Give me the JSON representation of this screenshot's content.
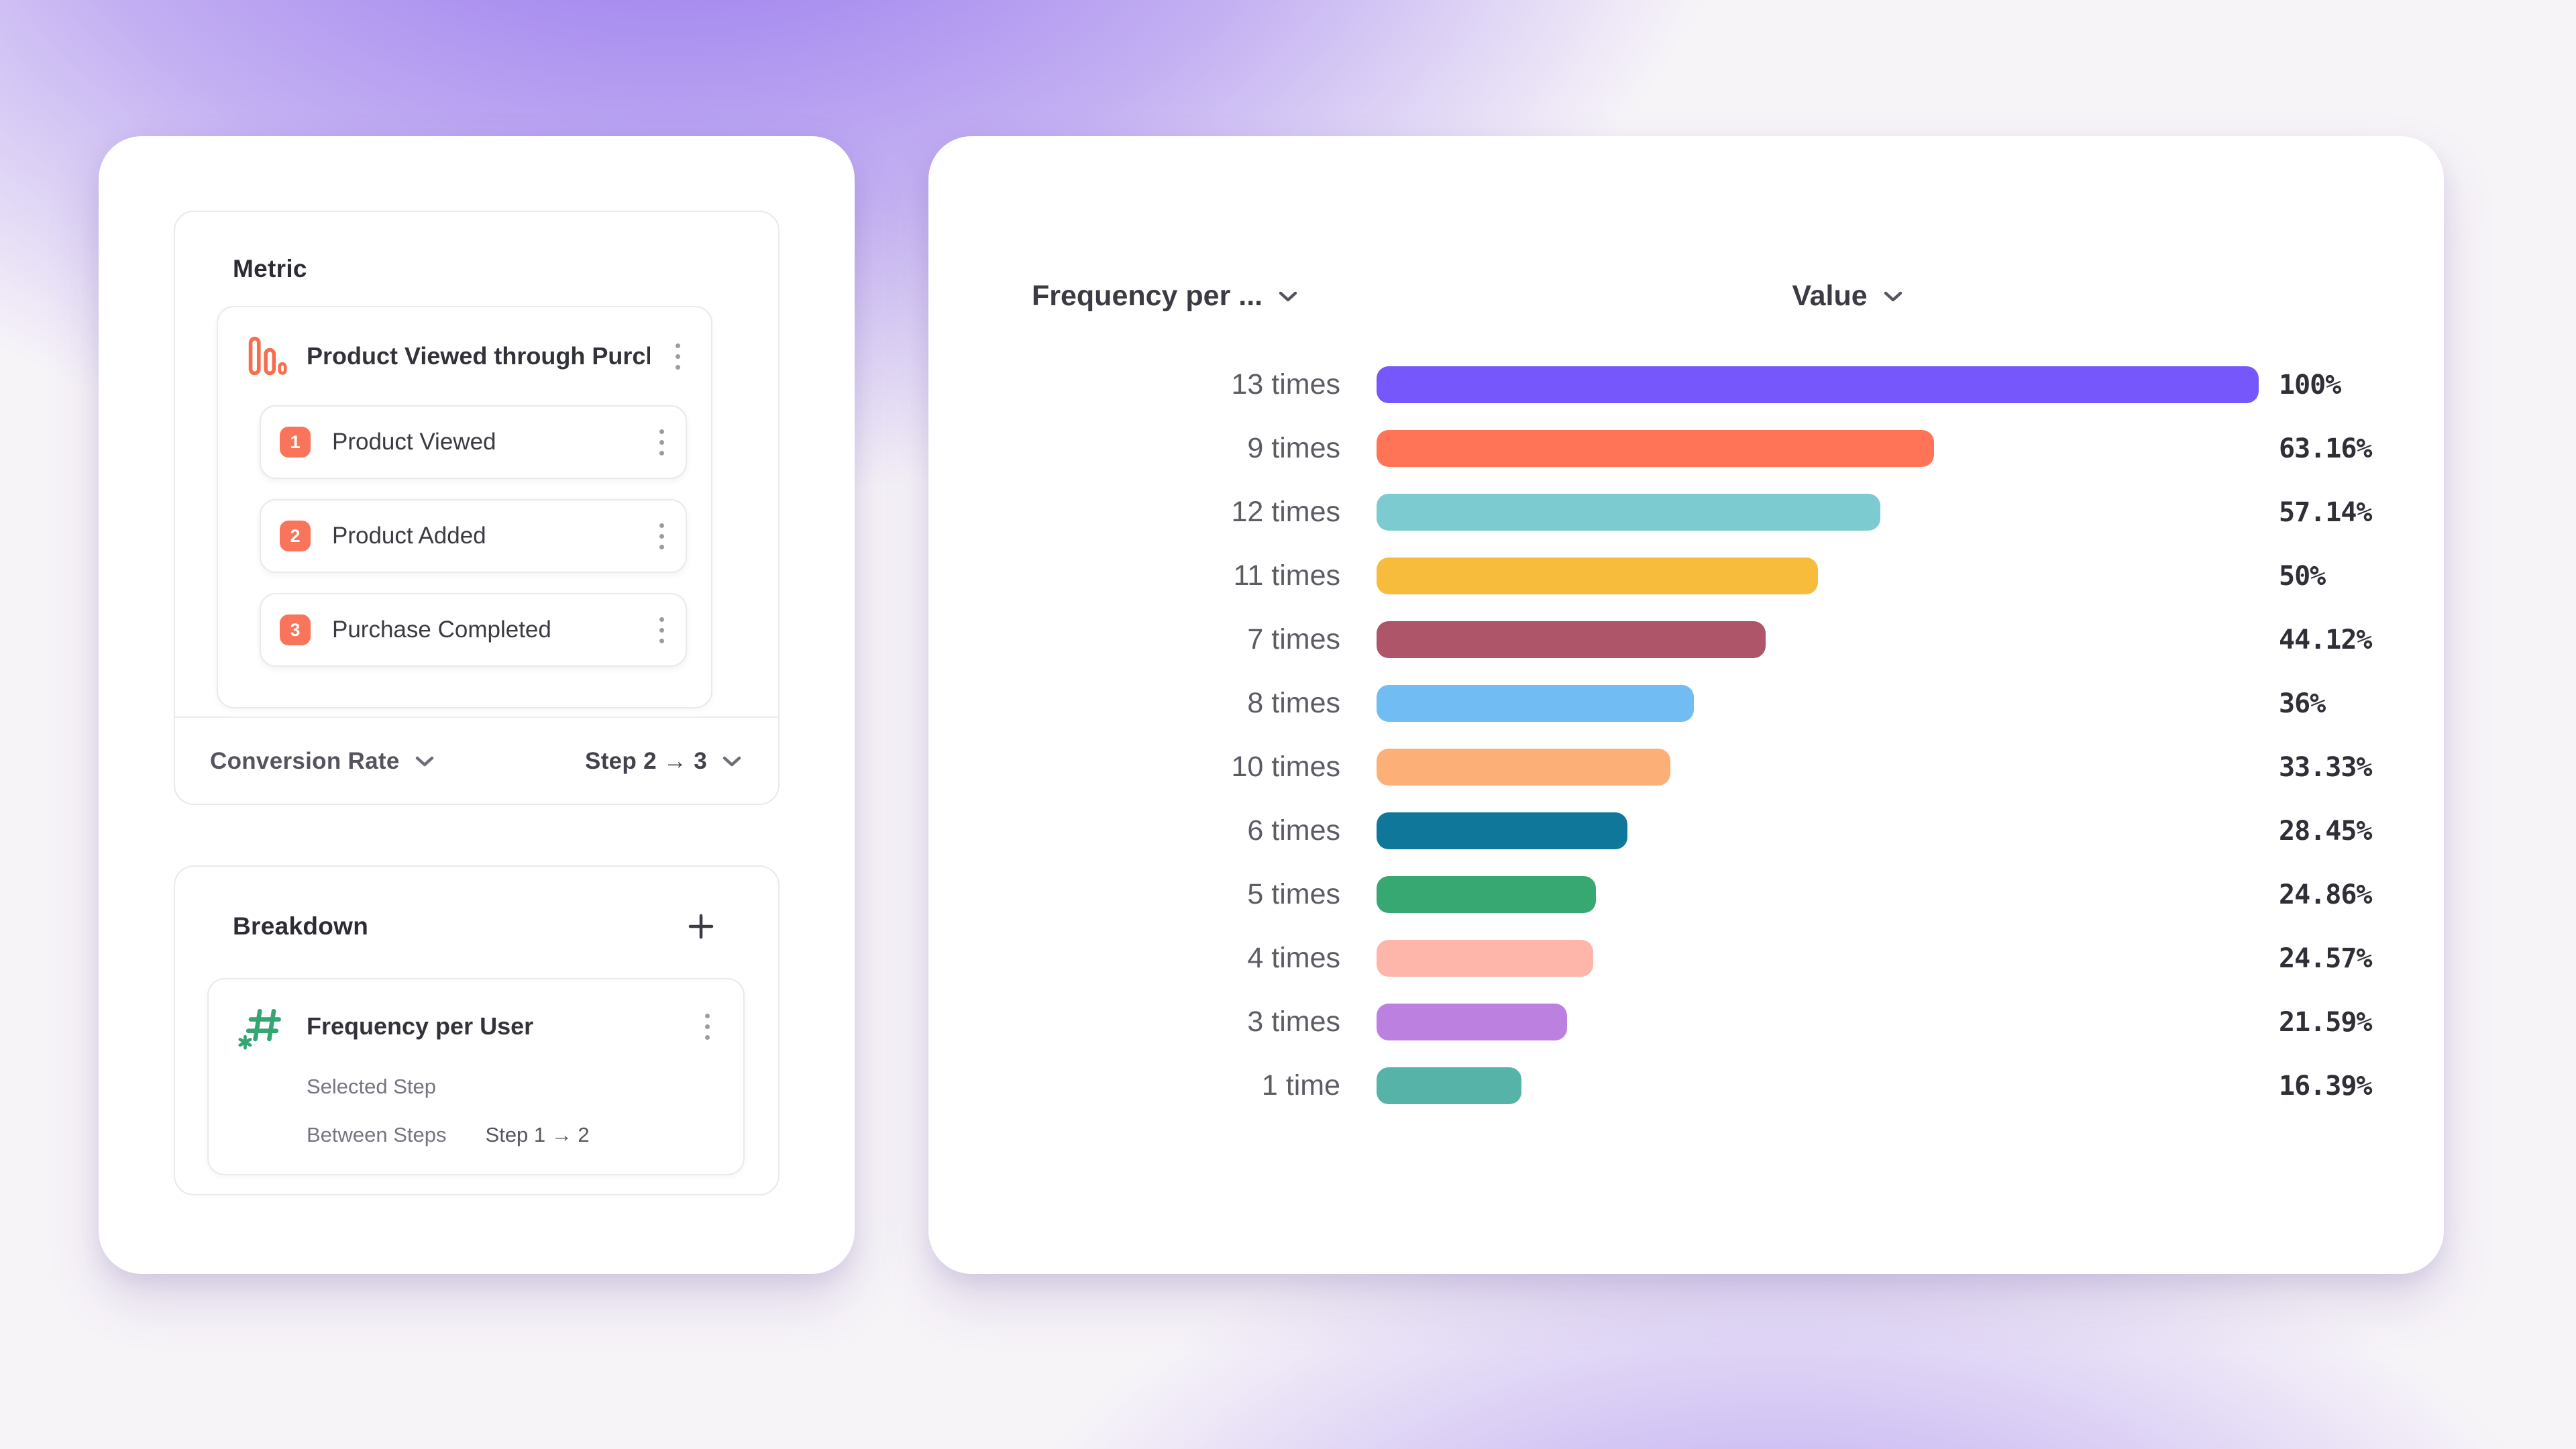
{
  "left_panel": {
    "metric_section": {
      "title": "Metric",
      "funnel": {
        "icon": "funnel-bars-icon",
        "title": "Product Viewed through Purch...",
        "menu_icon": "kebab-menu-icon",
        "steps": [
          {
            "number": "1",
            "label": "Product Viewed"
          },
          {
            "number": "2",
            "label": "Product Added"
          },
          {
            "number": "3",
            "label": "Purchase Completed"
          }
        ]
      },
      "footer": {
        "conversion_label": "Conversion Rate",
        "step_range": "Step 2 → 3",
        "chevron_icon": "chevron-down-icon"
      }
    },
    "breakdown_section": {
      "title": "Breakdown",
      "add_icon": "plus-icon",
      "item": {
        "icon": "hashtag-asterisk-icon",
        "title": "Frequency per User",
        "menu_icon": "kebab-menu-icon",
        "row1_label": "Selected Step",
        "row2_label": "Between Steps",
        "row2_value": "Step 1 → 2"
      }
    }
  },
  "chart_panel": {
    "left_header": "Frequency per ...",
    "right_header": "Value",
    "chevron_icon": "chevron-down-icon"
  },
  "chart_data": {
    "type": "bar",
    "orientation": "horizontal",
    "title": "",
    "xlabel": "",
    "ylabel": "",
    "xlim": [
      0,
      100
    ],
    "grid": false,
    "legend": "none",
    "categories": [
      "13 times",
      "9 times",
      "12 times",
      "11 times",
      "7 times",
      "8 times",
      "10 times",
      "6 times",
      "5 times",
      "4 times",
      "3 times",
      "1 time"
    ],
    "values": [
      100,
      63.16,
      57.14,
      50,
      44.12,
      36,
      33.33,
      28.45,
      24.86,
      24.57,
      21.59,
      16.39
    ],
    "value_labels": [
      "100%",
      "63.16%",
      "57.14%",
      "50%",
      "44.12%",
      "36%",
      "33.33%",
      "28.45%",
      "24.86%",
      "24.57%",
      "21.59%",
      "16.39%"
    ],
    "bar_colors": [
      "#7557FB",
      "#FF7357",
      "#7BCBD1",
      "#F7BC3B",
      "#AF5569",
      "#71BCF3",
      "#FCB077",
      "#0F7799",
      "#38A873",
      "#FDB6A9",
      "#BC81E0",
      "#56B3A8"
    ]
  },
  "colors": {
    "accent_orange": "#F8755B",
    "icon_orange": "#F46F4E",
    "icon_green": "#35A672",
    "card_border": "#E9E9EE",
    "background_glow": "#8660EC",
    "background_base": "#F7F4F8"
  }
}
